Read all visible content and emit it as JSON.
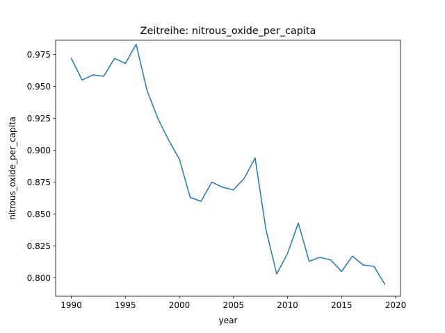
{
  "chart_data": {
    "type": "line",
    "title": "Zeitreihe: nitrous_oxide_per_capita",
    "xlabel": "year",
    "ylabel": "nitrous_oxide_per_capita",
    "xlim": [
      1988.55,
      2020.45
    ],
    "ylim": [
      0.7856,
      0.9862
    ],
    "x_ticks": [
      1990,
      1995,
      2000,
      2005,
      2010,
      2015,
      2020
    ],
    "y_ticks": [
      0.8,
      0.825,
      0.85,
      0.875,
      0.9,
      0.925,
      0.95,
      0.975
    ],
    "grid": false,
    "line_color": "#1f77b4",
    "series": [
      {
        "x": [
          1990,
          1991,
          1992,
          1993,
          1994,
          1995,
          1996,
          1997,
          1998,
          1999,
          2000,
          2001,
          2002,
          2003,
          2004,
          2005,
          2006,
          2007,
          2008,
          2009,
          2010,
          2011,
          2012,
          2013,
          2014,
          2015,
          2016,
          2017,
          2018,
          2019
        ],
        "values": [
          0.972,
          0.955,
          0.959,
          0.958,
          0.972,
          0.968,
          0.983,
          0.947,
          0.925,
          0.908,
          0.893,
          0.863,
          0.86,
          0.875,
          0.871,
          0.869,
          0.878,
          0.894,
          0.838,
          0.803,
          0.819,
          0.843,
          0.813,
          0.816,
          0.814,
          0.805,
          0.817,
          0.81,
          0.809,
          0.795
        ]
      }
    ]
  }
}
